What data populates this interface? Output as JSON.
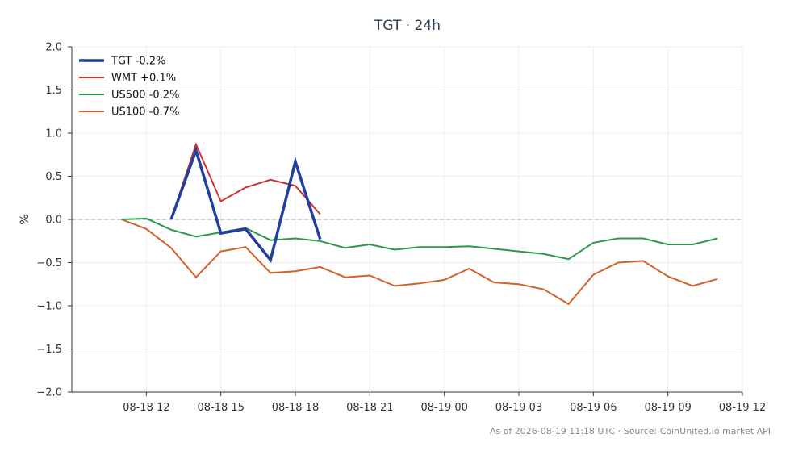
{
  "chart_data": {
    "type": "line",
    "title": "TGT · 24h",
    "ylabel": "%",
    "ylim": [
      -2.0,
      2.0
    ],
    "yticks": [
      2.0,
      1.5,
      1.0,
      0.5,
      0.0,
      -0.5,
      -1.0,
      -1.5,
      -2.0
    ],
    "ytick_labels": [
      "2.0",
      "1.5",
      "1.0",
      "0.5",
      "0.0",
      "−0.5",
      "−1.0",
      "−1.5",
      "−2.0"
    ],
    "xlim": [
      "2026-08-18 09:00",
      "2026-08-19 12:00"
    ],
    "xticks": [
      "08-18 12",
      "08-18 15",
      "08-18 18",
      "08-18 21",
      "08-19 00",
      "08-19 03",
      "08-19 06",
      "08-19 09",
      "08-19 12"
    ],
    "grid": true,
    "zero_line": true,
    "legend_position": "top-left",
    "series": [
      {
        "name": "TGT -0.2%",
        "color": "#233f9e",
        "x": [
          "2026-08-18 13:00",
          "2026-08-18 14:00",
          "2026-08-18 15:00",
          "2026-08-18 16:00",
          "2026-08-18 17:00",
          "2026-08-18 18:00",
          "2026-08-18 19:00"
        ],
        "values": [
          0.0,
          0.8,
          -0.16,
          -0.11,
          -0.47,
          0.67,
          -0.23
        ]
      },
      {
        "name": "WMT +0.1%",
        "color": "#cc3333",
        "x": [
          "2026-08-18 13:00",
          "2026-08-18 14:00",
          "2026-08-18 15:00",
          "2026-08-18 16:00",
          "2026-08-18 17:00",
          "2026-08-18 18:00",
          "2026-08-18 19:00"
        ],
        "values": [
          0.0,
          0.87,
          0.21,
          0.37,
          0.46,
          0.39,
          0.06
        ]
      },
      {
        "name": "US500 -0.2%",
        "color": "#2a9a4a",
        "x": [
          "2026-08-18 11:00",
          "2026-08-18 12:00",
          "2026-08-18 13:00",
          "2026-08-18 14:00",
          "2026-08-18 15:00",
          "2026-08-18 16:00",
          "2026-08-18 17:00",
          "2026-08-18 18:00",
          "2026-08-18 19:00",
          "2026-08-18 20:00",
          "2026-08-18 21:00",
          "2026-08-18 22:00",
          "2026-08-18 23:00",
          "2026-08-19 00:00",
          "2026-08-19 01:00",
          "2026-08-19 02:00",
          "2026-08-19 03:00",
          "2026-08-19 04:00",
          "2026-08-19 05:00",
          "2026-08-19 06:00",
          "2026-08-19 07:00",
          "2026-08-19 08:00",
          "2026-08-19 09:00",
          "2026-08-19 10:00",
          "2026-08-19 11:00"
        ],
        "values": [
          0.0,
          0.01,
          -0.12,
          -0.2,
          -0.15,
          -0.1,
          -0.24,
          -0.22,
          -0.25,
          -0.33,
          -0.29,
          -0.35,
          -0.32,
          -0.32,
          -0.31,
          -0.34,
          -0.37,
          -0.4,
          -0.46,
          -0.27,
          -0.22,
          -0.22,
          -0.29,
          -0.29,
          -0.22
        ]
      },
      {
        "name": "US100 -0.7%",
        "color": "#d2622a",
        "x": [
          "2026-08-18 11:00",
          "2026-08-18 12:00",
          "2026-08-18 13:00",
          "2026-08-18 14:00",
          "2026-08-18 15:00",
          "2026-08-18 16:00",
          "2026-08-18 17:00",
          "2026-08-18 18:00",
          "2026-08-18 19:00",
          "2026-08-18 20:00",
          "2026-08-18 21:00",
          "2026-08-18 22:00",
          "2026-08-18 23:00",
          "2026-08-19 00:00",
          "2026-08-19 01:00",
          "2026-08-19 02:00",
          "2026-08-19 03:00",
          "2026-08-19 04:00",
          "2026-08-19 05:00",
          "2026-08-19 06:00",
          "2026-08-19 07:00",
          "2026-08-19 08:00",
          "2026-08-19 09:00",
          "2026-08-19 10:00",
          "2026-08-19 11:00"
        ],
        "values": [
          0.0,
          -0.11,
          -0.33,
          -0.67,
          -0.37,
          -0.32,
          -0.62,
          -0.6,
          -0.55,
          -0.67,
          -0.65,
          -0.77,
          -0.74,
          -0.7,
          -0.57,
          -0.73,
          -0.75,
          -0.81,
          -0.98,
          -0.64,
          -0.5,
          -0.48,
          -0.66,
          -0.77,
          -0.69
        ]
      }
    ]
  },
  "footer": "As of 2026-08-19 11:18 UTC · Source: CoinUnited.io market API"
}
